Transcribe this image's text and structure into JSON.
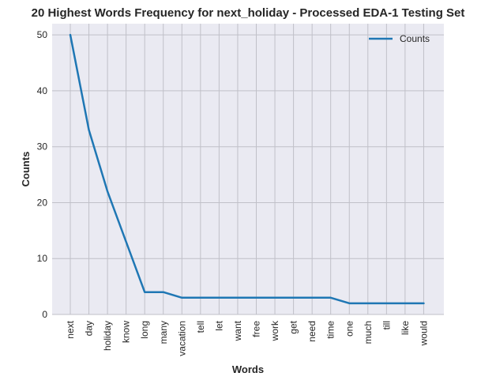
{
  "chart_data": {
    "type": "line",
    "title": "20 Highest Words Frequency for next_holiday - Processed EDA-1 Testing Set",
    "xlabel": "Words",
    "ylabel": "Counts",
    "categories": [
      "next",
      "day",
      "holiday",
      "know",
      "long",
      "many",
      "vacation",
      "tell",
      "let",
      "want",
      "free",
      "work",
      "get",
      "need",
      "time",
      "one",
      "much",
      "till",
      "like",
      "would"
    ],
    "series": [
      {
        "name": "Counts",
        "color": "#1f77b4",
        "values": [
          50,
          33,
          22,
          13,
          4,
          4,
          3,
          3,
          3,
          3,
          3,
          3,
          3,
          3,
          3,
          2,
          2,
          2,
          2,
          2
        ]
      }
    ],
    "ylim": [
      0,
      52
    ],
    "yticks": [
      0,
      10,
      20,
      30,
      40,
      50
    ],
    "grid": true,
    "legend": "top-right",
    "colors": {
      "background": "#eaeaf2",
      "grid": "#c0c0c8"
    }
  }
}
